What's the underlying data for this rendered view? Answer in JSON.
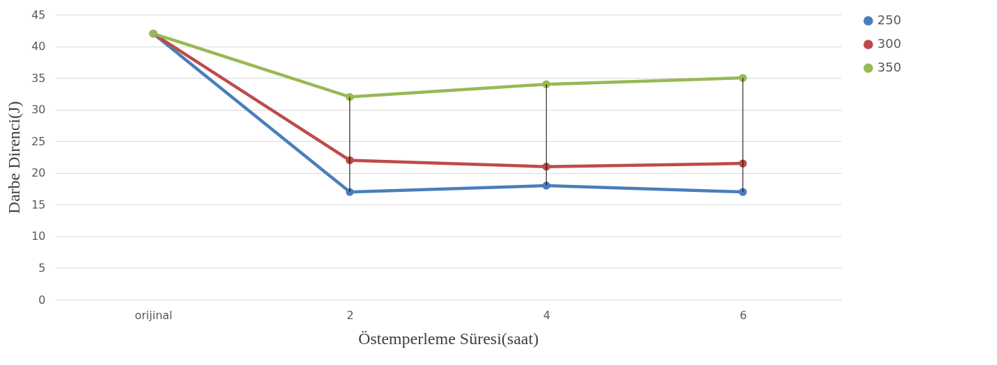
{
  "chart_data": {
    "type": "line",
    "xlabel": "Östemperleme Süresi(saat)",
    "ylabel": "Darbe Direnci(J)",
    "categories": [
      "orijinal",
      "2",
      "4",
      "6"
    ],
    "series": [
      {
        "name": "250",
        "color": "#4a7ebb",
        "values": [
          42,
          17,
          18,
          17
        ]
      },
      {
        "name": "300",
        "color": "#be4b48",
        "values": [
          42,
          22,
          21,
          21.5
        ],
        "errors": [
          null,
          [
            17,
            32
          ],
          [
            18,
            34
          ],
          [
            17,
            35
          ]
        ]
      },
      {
        "name": "350",
        "color": "#98b954",
        "values": [
          42,
          32,
          34,
          35
        ]
      }
    ],
    "ylim": [
      0,
      45
    ],
    "yticks": [
      0,
      5,
      10,
      15,
      20,
      25,
      30,
      35,
      40,
      45
    ],
    "grid": "y",
    "legend": "right",
    "marker": "circle",
    "line_style": "solid"
  }
}
